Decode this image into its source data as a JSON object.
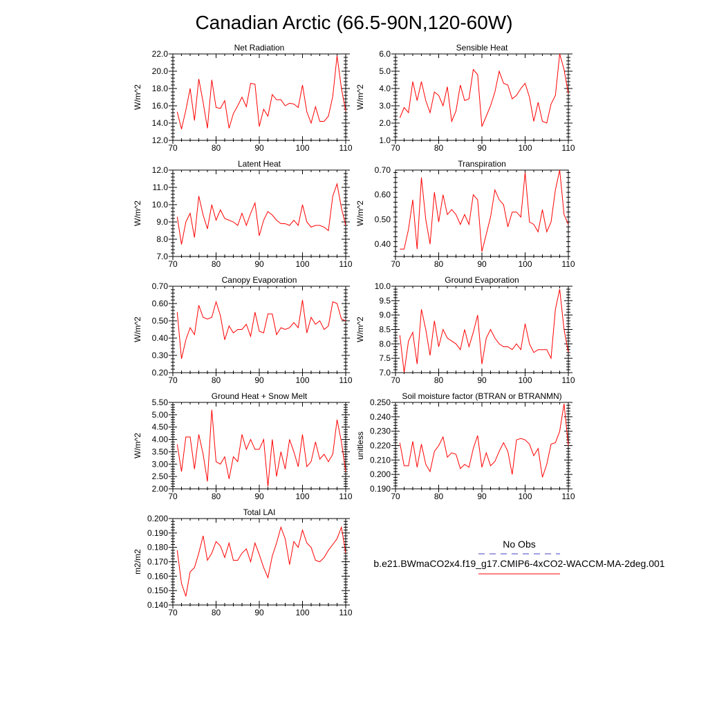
{
  "title": "Canadian Arctic (66.5-90N,120-60W)",
  "colors": {
    "model": "#ff0000",
    "obs": "#4040c0"
  },
  "legend": {
    "obs_label": "No Obs",
    "model_label": "b.e21.BWmaCO2x4.f19_g17.CMIP6-4xCO2-WACCM-MA-2deg.001"
  },
  "chart_data": [
    {
      "type": "line",
      "title": "Net Radiation",
      "ylabel": "W/m^2",
      "xlim": [
        70,
        110
      ],
      "ylim": [
        12.0,
        22.0
      ],
      "xticks": [
        "70",
        "80",
        "90",
        "100",
        "110"
      ],
      "yticks": [
        "12.0",
        "14.0",
        "16.0",
        "18.0",
        "20.0",
        "22.0"
      ],
      "x": [
        71,
        72,
        73,
        74,
        75,
        76,
        77,
        78,
        79,
        80,
        81,
        82,
        83,
        84,
        85,
        86,
        87,
        88,
        89,
        90,
        91,
        92,
        93,
        94,
        95,
        96,
        97,
        98,
        99,
        100,
        101,
        102,
        103,
        104,
        105,
        106,
        107,
        108,
        109,
        110
      ],
      "series": [
        {
          "values": [
            15.3,
            13.3,
            15.5,
            18.0,
            14.3,
            19.1,
            16.4,
            13.4,
            19.0,
            15.8,
            15.7,
            16.6,
            13.4,
            15.1,
            16.0,
            17.0,
            15.9,
            18.6,
            18.5,
            13.6,
            15.6,
            14.8,
            17.3,
            16.7,
            16.7,
            16.0,
            16.3,
            16.2,
            15.8,
            18.4,
            15.3,
            14.0,
            15.9,
            14.2,
            14.2,
            14.8,
            17.1,
            21.8,
            18.0,
            15.4
          ]
        }
      ]
    },
    {
      "type": "line",
      "title": "Sensible Heat",
      "ylabel": "W/m^2",
      "xlim": [
        70,
        110
      ],
      "ylim": [
        1.0,
        6.0
      ],
      "xticks": [
        "70",
        "80",
        "90",
        "100",
        "110"
      ],
      "yticks": [
        "1.0",
        "2.0",
        "3.0",
        "4.0",
        "5.0",
        "6.0"
      ],
      "x": [
        71,
        72,
        73,
        74,
        75,
        76,
        77,
        78,
        79,
        80,
        81,
        82,
        83,
        84,
        85,
        86,
        87,
        88,
        89,
        90,
        91,
        92,
        93,
        94,
        95,
        96,
        97,
        98,
        99,
        100,
        101,
        102,
        103,
        104,
        105,
        106,
        107,
        108,
        109,
        110
      ],
      "series": [
        {
          "values": [
            2.3,
            2.9,
            2.6,
            4.4,
            3.3,
            4.4,
            3.3,
            2.6,
            3.8,
            3.6,
            3.0,
            4.1,
            2.1,
            2.7,
            4.2,
            3.3,
            3.4,
            5.1,
            4.8,
            1.8,
            2.4,
            3.0,
            3.8,
            5.0,
            4.3,
            4.2,
            3.4,
            3.6,
            4.0,
            4.3,
            3.5,
            2.1,
            3.2,
            2.1,
            2.0,
            3.1,
            3.6,
            6.0,
            5.1,
            3.7
          ]
        }
      ]
    },
    {
      "type": "line",
      "title": "Latent Heat",
      "ylabel": "W/m^2",
      "xlim": [
        70,
        110
      ],
      "ylim": [
        7.0,
        12.0
      ],
      "xticks": [
        "70",
        "80",
        "90",
        "100",
        "110"
      ],
      "yticks": [
        "7.0",
        "8.0",
        "9.0",
        "10.0",
        "11.0",
        "12.0"
      ],
      "x": [
        71,
        72,
        73,
        74,
        75,
        76,
        77,
        78,
        79,
        80,
        81,
        82,
        83,
        84,
        85,
        86,
        87,
        88,
        89,
        90,
        91,
        92,
        93,
        94,
        95,
        96,
        97,
        98,
        99,
        100,
        101,
        102,
        103,
        104,
        105,
        106,
        107,
        108,
        109,
        110
      ],
      "series": [
        {
          "values": [
            9.3,
            7.7,
            9.0,
            9.5,
            8.1,
            10.5,
            9.4,
            8.6,
            10.0,
            9.1,
            9.7,
            9.2,
            9.1,
            9.0,
            8.8,
            9.5,
            8.8,
            9.5,
            10.1,
            8.2,
            9.1,
            9.6,
            9.4,
            9.1,
            8.9,
            8.9,
            8.8,
            9.1,
            8.8,
            10.0,
            9.0,
            8.7,
            8.8,
            8.8,
            8.7,
            8.5,
            10.5,
            11.2,
            9.8,
            8.8
          ]
        }
      ]
    },
    {
      "type": "line",
      "title": "Transpiration",
      "ylabel": "W/m^2",
      "xlim": [
        70,
        110
      ],
      "ylim": [
        0.35,
        0.7
      ],
      "xticks": [
        "70",
        "80",
        "90",
        "100",
        "110"
      ],
      "yticks": [
        "0.40",
        "0.50",
        "0.60",
        "0.70"
      ],
      "x": [
        71,
        72,
        73,
        74,
        75,
        76,
        77,
        78,
        79,
        80,
        81,
        82,
        83,
        84,
        85,
        86,
        87,
        88,
        89,
        90,
        91,
        92,
        93,
        94,
        95,
        96,
        97,
        98,
        99,
        100,
        101,
        102,
        103,
        104,
        105,
        106,
        107,
        108,
        109,
        110
      ],
      "series": [
        {
          "values": [
            0.38,
            0.38,
            0.46,
            0.58,
            0.38,
            0.67,
            0.5,
            0.4,
            0.61,
            0.49,
            0.6,
            0.52,
            0.54,
            0.52,
            0.48,
            0.52,
            0.48,
            0.6,
            0.58,
            0.37,
            0.44,
            0.51,
            0.62,
            0.58,
            0.56,
            0.47,
            0.53,
            0.53,
            0.51,
            0.69,
            0.49,
            0.48,
            0.45,
            0.54,
            0.45,
            0.49,
            0.62,
            0.7,
            0.52,
            0.48
          ]
        }
      ]
    },
    {
      "type": "line",
      "title": "Canopy Evaporation",
      "ylabel": "W/m^2",
      "xlim": [
        70,
        110
      ],
      "ylim": [
        0.2,
        0.7
      ],
      "xticks": [
        "70",
        "80",
        "90",
        "100",
        "110"
      ],
      "yticks": [
        "0.20",
        "0.30",
        "0.40",
        "0.50",
        "0.60",
        "0.70"
      ],
      "x": [
        71,
        72,
        73,
        74,
        75,
        76,
        77,
        78,
        79,
        80,
        81,
        82,
        83,
        84,
        85,
        86,
        87,
        88,
        89,
        90,
        91,
        92,
        93,
        94,
        95,
        96,
        97,
        98,
        99,
        100,
        101,
        102,
        103,
        104,
        105,
        106,
        107,
        108,
        109,
        110
      ],
      "series": [
        {
          "values": [
            0.55,
            0.28,
            0.39,
            0.46,
            0.42,
            0.59,
            0.52,
            0.51,
            0.52,
            0.61,
            0.53,
            0.39,
            0.47,
            0.43,
            0.45,
            0.45,
            0.48,
            0.41,
            0.55,
            0.44,
            0.43,
            0.54,
            0.54,
            0.42,
            0.46,
            0.45,
            0.46,
            0.49,
            0.46,
            0.62,
            0.43,
            0.52,
            0.48,
            0.5,
            0.45,
            0.47,
            0.61,
            0.6,
            0.51,
            0.5
          ]
        }
      ]
    },
    {
      "type": "line",
      "title": "Ground Evaporation",
      "ylabel": "W/m^2",
      "xlim": [
        70,
        110
      ],
      "ylim": [
        7.0,
        10.0
      ],
      "xticks": [
        "70",
        "80",
        "90",
        "100",
        "110"
      ],
      "yticks": [
        "7.0",
        "7.5",
        "8.0",
        "8.5",
        "9.0",
        "9.5",
        "10.0"
      ],
      "x": [
        71,
        72,
        73,
        74,
        75,
        76,
        77,
        78,
        79,
        80,
        81,
        82,
        83,
        84,
        85,
        86,
        87,
        88,
        89,
        90,
        91,
        92,
        93,
        94,
        95,
        96,
        97,
        98,
        99,
        100,
        101,
        102,
        103,
        104,
        105,
        106,
        107,
        108,
        109,
        110
      ],
      "series": [
        {
          "values": [
            8.3,
            7.0,
            8.1,
            8.4,
            7.3,
            9.2,
            8.5,
            7.6,
            8.8,
            7.9,
            8.5,
            8.2,
            8.1,
            8.0,
            7.8,
            8.5,
            7.9,
            8.4,
            9.0,
            7.3,
            8.2,
            8.5,
            8.2,
            8.0,
            7.9,
            7.9,
            7.8,
            8.0,
            7.8,
            8.7,
            8.0,
            7.7,
            7.8,
            7.8,
            7.8,
            7.5,
            9.2,
            9.9,
            8.5,
            7.7
          ]
        }
      ]
    },
    {
      "type": "line",
      "title": "Ground Heat + Snow Melt",
      "ylabel": "W/m^2",
      "xlim": [
        70,
        110
      ],
      "ylim": [
        2.0,
        5.5
      ],
      "xticks": [
        "70",
        "80",
        "90",
        "100",
        "110"
      ],
      "yticks": [
        "2.00",
        "2.50",
        "3.00",
        "3.50",
        "4.00",
        "4.50",
        "5.00",
        "5.50"
      ],
      "x": [
        71,
        72,
        73,
        74,
        75,
        76,
        77,
        78,
        79,
        80,
        81,
        82,
        83,
        84,
        85,
        86,
        87,
        88,
        89,
        90,
        91,
        92,
        93,
        94,
        95,
        96,
        97,
        98,
        99,
        100,
        101,
        102,
        103,
        104,
        105,
        106,
        107,
        108,
        109,
        110
      ],
      "series": [
        {
          "values": [
            3.8,
            2.7,
            4.1,
            4.1,
            2.8,
            4.2,
            3.4,
            2.3,
            5.2,
            3.1,
            3.0,
            3.3,
            2.4,
            3.3,
            3.1,
            4.2,
            3.6,
            4.0,
            3.6,
            3.6,
            4.0,
            2.1,
            4.0,
            2.5,
            3.5,
            2.8,
            4.0,
            3.5,
            2.9,
            4.2,
            2.9,
            3.1,
            3.9,
            3.2,
            3.4,
            3.1,
            3.4,
            4.8,
            3.9,
            2.7
          ]
        }
      ]
    },
    {
      "type": "line",
      "title": "Soil moisture factor (BTRAN or BTRANMN)",
      "ylabel": "unitless",
      "xlim": [
        70,
        110
      ],
      "ylim": [
        0.19,
        0.25
      ],
      "xticks": [
        "70",
        "80",
        "90",
        "100",
        "110"
      ],
      "yticks": [
        "0.190",
        "0.200",
        "0.210",
        "0.220",
        "0.230",
        "0.240",
        "0.250"
      ],
      "x": [
        71,
        72,
        73,
        74,
        75,
        76,
        77,
        78,
        79,
        80,
        81,
        82,
        83,
        84,
        85,
        86,
        87,
        88,
        89,
        90,
        91,
        92,
        93,
        94,
        95,
        96,
        97,
        98,
        99,
        100,
        101,
        102,
        103,
        104,
        105,
        106,
        107,
        108,
        109,
        110
      ],
      "series": [
        {
          "values": [
            0.222,
            0.206,
            0.206,
            0.223,
            0.205,
            0.221,
            0.207,
            0.202,
            0.216,
            0.22,
            0.226,
            0.212,
            0.215,
            0.214,
            0.204,
            0.207,
            0.205,
            0.218,
            0.227,
            0.205,
            0.215,
            0.206,
            0.209,
            0.216,
            0.222,
            0.216,
            0.2,
            0.224,
            0.225,
            0.224,
            0.221,
            0.213,
            0.218,
            0.198,
            0.207,
            0.221,
            0.222,
            0.23,
            0.249,
            0.22
          ]
        }
      ]
    },
    {
      "type": "line",
      "title": "Total LAI",
      "ylabel": "m2/m2",
      "xlim": [
        70,
        110
      ],
      "ylim": [
        0.14,
        0.2
      ],
      "xticks": [
        "70",
        "80",
        "90",
        "100",
        "110"
      ],
      "yticks": [
        "0.140",
        "0.150",
        "0.160",
        "0.170",
        "0.180",
        "0.190",
        "0.200"
      ],
      "x": [
        71,
        72,
        73,
        74,
        75,
        76,
        77,
        78,
        79,
        80,
        81,
        82,
        83,
        84,
        85,
        86,
        87,
        88,
        89,
        90,
        91,
        92,
        93,
        94,
        95,
        96,
        97,
        98,
        99,
        100,
        101,
        102,
        103,
        104,
        105,
        106,
        107,
        108,
        109,
        110
      ],
      "series": [
        {
          "values": [
            0.178,
            0.155,
            0.146,
            0.163,
            0.166,
            0.176,
            0.188,
            0.171,
            0.176,
            0.184,
            0.181,
            0.173,
            0.183,
            0.171,
            0.171,
            0.176,
            0.179,
            0.17,
            0.183,
            0.175,
            0.166,
            0.159,
            0.174,
            0.183,
            0.194,
            0.186,
            0.168,
            0.184,
            0.18,
            0.192,
            0.183,
            0.18,
            0.171,
            0.17,
            0.173,
            0.178,
            0.182,
            0.186,
            0.194,
            0.176
          ]
        }
      ]
    }
  ]
}
